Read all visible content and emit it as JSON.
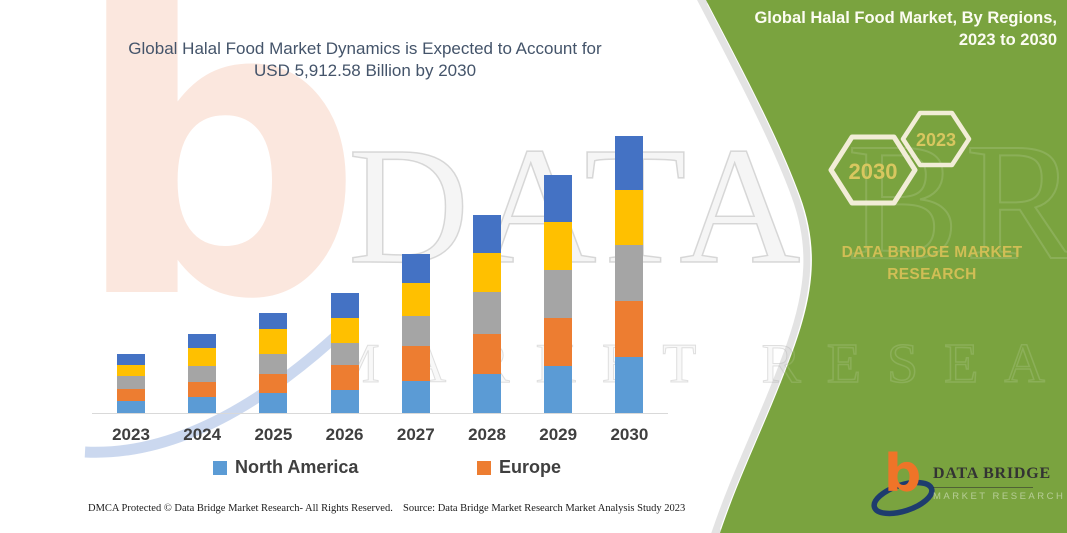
{
  "chart_title": {
    "line1": "Global Halal Food Market Dynamics is Expected to Account for",
    "line2": "USD 5,912.58 Billion by 2030"
  },
  "chart_data": {
    "type": "bar",
    "stacked": true,
    "title": "Global Halal Food Market Dynamics is Expected to Account for USD 5,912.58 Billion by 2030",
    "categories": [
      "2023",
      "2024",
      "2025",
      "2026",
      "2027",
      "2028",
      "2029",
      "2030"
    ],
    "series": [
      {
        "name": "North America",
        "color": "#5B9BD5",
        "values": [
          12,
          16,
          20,
          23,
          32,
          39,
          47,
          56
        ]
      },
      {
        "name": "Europe",
        "color": "#ED7D31",
        "values": [
          12,
          15,
          19,
          25,
          35,
          40,
          48,
          56
        ]
      },
      {
        "name": "unlabeled-gray",
        "color": "#A5A5A5",
        "values": [
          13,
          16,
          20,
          22,
          30,
          42,
          48,
          56
        ]
      },
      {
        "name": "unlabeled-yellow",
        "color": "#FFC000",
        "values": [
          11,
          18,
          25,
          25,
          33,
          39,
          48,
          55
        ]
      },
      {
        "name": "unlabeled-dark-blue",
        "color": "#4472C4",
        "values": [
          11,
          14,
          16,
          25,
          29,
          38,
          47,
          54
        ]
      }
    ],
    "value_units": "relative height units (no value axis shown in image)",
    "xlabel": "",
    "ylabel": "",
    "grid": false,
    "legend_position": "bottom",
    "legend_visible_entries": [
      "North America",
      "Europe"
    ]
  },
  "legend": [
    {
      "label": "North America",
      "color": "#5B9BD5"
    },
    {
      "label": "Europe",
      "color": "#ED7D31"
    }
  ],
  "footer": {
    "left": "DMCA Protected © Data Bridge Market Research-  All Rights Reserved.",
    "right": "Source: Data Bridge Market Research  Market Analysis Study 2023"
  },
  "side_panel": {
    "title_line1": "Global Halal Food Market, By Regions,",
    "title_line2": "2023 to 2030",
    "hexagon_large_label": "2030",
    "hexagon_small_label": "2023",
    "brand_line1": "DATA BRIDGE MARKET",
    "brand_line2": "RESEARCH",
    "colors": {
      "panel_green": "#7AA33F",
      "hexagon_stroke": "#F2EDD7",
      "hexagon_text_gold": "#D8C75F",
      "brand_gold": "#D0BE55"
    }
  },
  "logo": {
    "glyph": "b",
    "name": "DATA BRIDGE",
    "tagline": "MARKET RESEARCH",
    "colors": {
      "b_orange": "#EF7428",
      "swoosh_navy": "#1E3C6E"
    }
  },
  "watermark": {
    "letter": "b",
    "row1": "DATA BRIDGE",
    "row2": "MARKET RESEARCH"
  },
  "style_colors": {
    "title_text": "#44546A",
    "axis_label": "#3F3F3F",
    "axis_line": "#D9D9D9"
  }
}
